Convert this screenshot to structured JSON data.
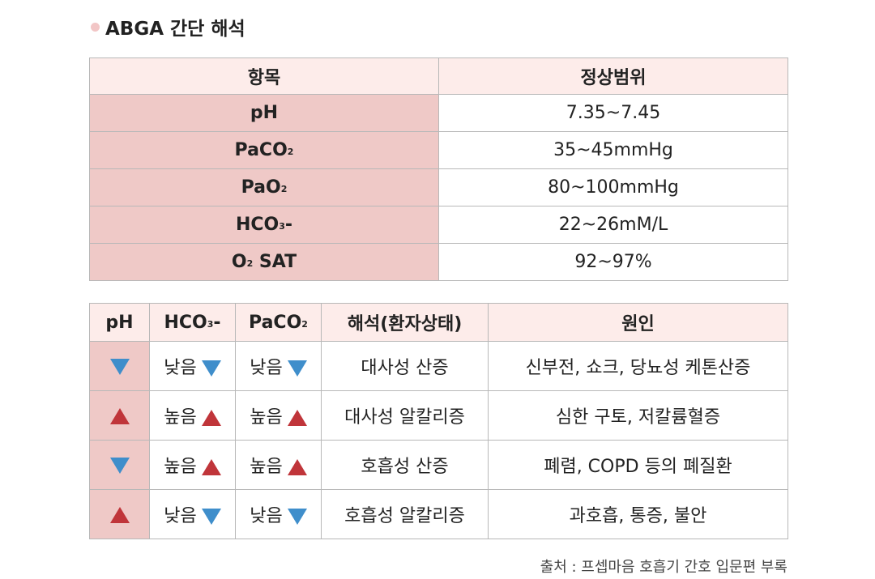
{
  "title": "ABGA 간단 해석",
  "normal_table": {
    "headers": [
      "항목",
      "정상범위"
    ],
    "rows": [
      {
        "item": "pH",
        "range": "7.35~7.45"
      },
      {
        "item_base": "PaCO",
        "item_sub": "2",
        "range": "35~45mmHg"
      },
      {
        "item_base": "PaO",
        "item_sub": "2",
        "range": "80~100mmHg"
      },
      {
        "item_base": "HCO",
        "item_sub": "3",
        "item_suffix": "-",
        "range": "22~26mM/L"
      },
      {
        "item_base": "O",
        "item_sub": "2",
        "item_suffix": " SAT",
        "range": "92~97%"
      }
    ]
  },
  "interp_table": {
    "headers": {
      "ph": "pH",
      "hco3_base": "HCO",
      "hco3_sub": "3",
      "hco3_suffix": "-",
      "paco2_base": "PaCO",
      "paco2_sub": "2",
      "interp": "해석(환자상태)",
      "cause": "원인"
    },
    "rows": [
      {
        "ph": "down",
        "hco3": "낮음",
        "hco3_dir": "down",
        "paco2": "낮음",
        "paco2_dir": "down",
        "interp": "대사성 산증",
        "cause": "신부전, 쇼크, 당뇨성 케톤산증"
      },
      {
        "ph": "up",
        "hco3": "높음",
        "hco3_dir": "up",
        "paco2": "높음",
        "paco2_dir": "up",
        "interp": "대사성 알칼리증",
        "cause": "심한 구토, 저칼륨혈증"
      },
      {
        "ph": "down",
        "hco3": "높음",
        "hco3_dir": "up",
        "paco2": "높음",
        "paco2_dir": "up",
        "interp": "호흡성 산증",
        "cause": "폐렴, COPD 등의 폐질환"
      },
      {
        "ph": "up",
        "hco3": "낮음",
        "hco3_dir": "down",
        "paco2": "낮음",
        "paco2_dir": "down",
        "interp": "호흡성 알칼리증",
        "cause": "과호흡, 통증, 불안"
      }
    ]
  },
  "source": "출처 : 프셉마음 호흡기 간호 입문편 부록",
  "colors": {
    "up_arrow": "#c0353a",
    "down_arrow": "#3f8ecb",
    "item_bg": "#efc9c7",
    "header_bg": "#fdecea"
  }
}
